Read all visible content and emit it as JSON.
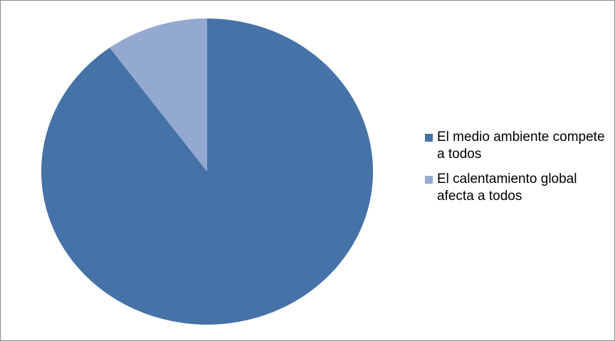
{
  "chart_data": {
    "type": "pie",
    "title": "",
    "slices": [
      {
        "label": "El medio ambiente compete a todos",
        "value": 90,
        "color": "#4572A7"
      },
      {
        "label": "El calentamiento global afecta a todos",
        "value": 10,
        "color": "#93A9CF"
      }
    ],
    "legend_position": "right",
    "start_angle_deg": 0,
    "direction": "clockwise"
  }
}
